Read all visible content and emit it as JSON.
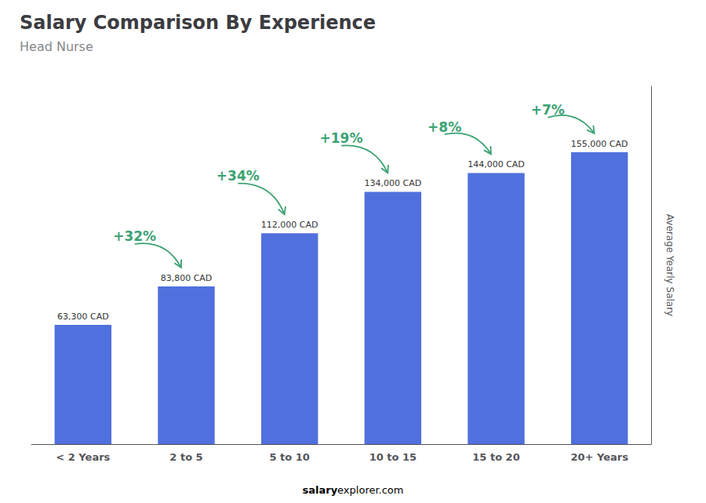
{
  "chart_data": {
    "type": "bar",
    "title": "Salary Comparison By Experience",
    "subtitle": "Head Nurse",
    "ylabel": "Average Yearly Salary",
    "categories": [
      "< 2 Years",
      "2 to 5",
      "5 to 10",
      "10 to 15",
      "15 to 20",
      "20+ Years"
    ],
    "values": [
      63300,
      83800,
      112000,
      134000,
      144000,
      155000
    ],
    "data_labels": true,
    "value_labels": [
      "63,300 CAD",
      "83,800 CAD",
      "112,000 CAD",
      "134,000 CAD",
      "144,000 CAD",
      "155,000 CAD"
    ],
    "annotations": [
      "+32%",
      "+34%",
      "+19%",
      "+8%",
      "+7%"
    ],
    "watermark": [
      "salary",
      "explorer.com"
    ],
    "ylim": [
      0,
      190000
    ],
    "grid": false,
    "tick_labels": "x"
  }
}
